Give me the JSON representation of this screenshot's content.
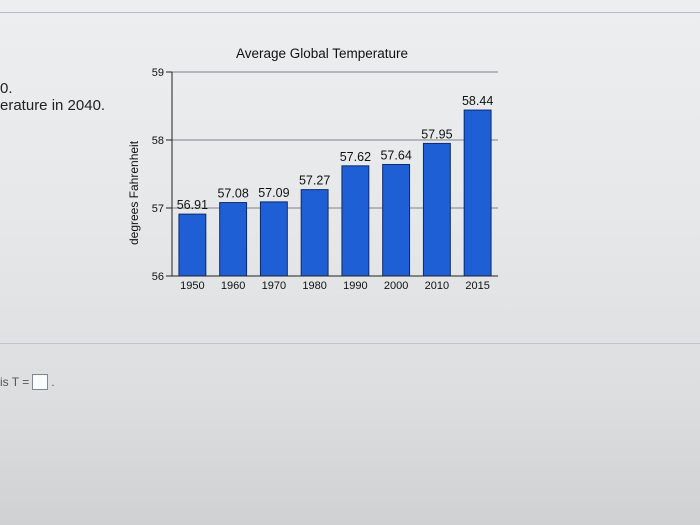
{
  "question": {
    "fragment_1": "0.",
    "fragment_2": "erature in 2040.",
    "answer_prefix": "is T =",
    "answer_suffix": "."
  },
  "chart_data": {
    "type": "bar",
    "title": "Average Global Temperature",
    "xlabel": "",
    "ylabel": "degrees Fahrenheit",
    "categories": [
      "1950",
      "1960",
      "1970",
      "1980",
      "1990",
      "2000",
      "2010",
      "2015"
    ],
    "values": [
      56.91,
      57.08,
      57.09,
      57.27,
      57.62,
      57.64,
      57.95,
      58.44
    ],
    "value_labels": [
      "56.91",
      "57.08",
      "57.09",
      "57.27",
      "57.62",
      "57.64",
      "57.95",
      "58.44"
    ],
    "ylim": [
      56,
      59
    ],
    "yticks": [
      "56",
      "57",
      "58",
      "59"
    ],
    "grid": true,
    "colors": {
      "bar": "#1f5fd6",
      "bar_edge": "#0e2a6b"
    }
  }
}
